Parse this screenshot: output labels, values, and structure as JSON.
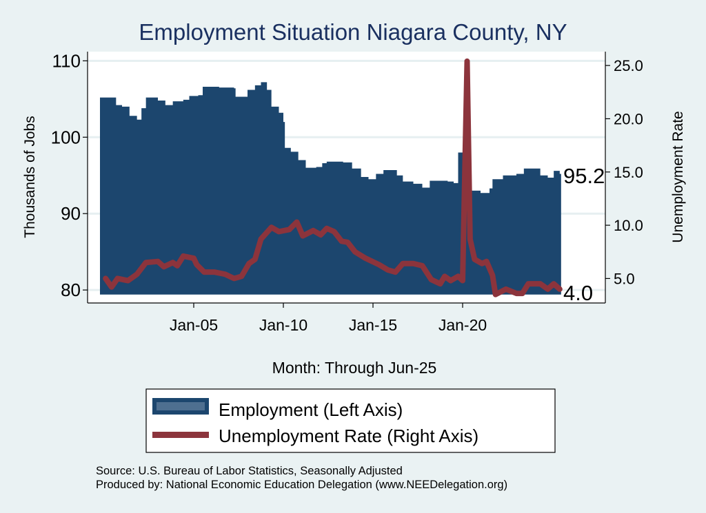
{
  "chart_data": {
    "type": "area+line",
    "title": "Employment Situation Niagara  County, NY",
    "xlabel": "Month: Through Jun-25",
    "ylabel_left": "Thousands of Jobs",
    "ylabel_right": "Unemployment Rate",
    "x_ticks": [
      {
        "date": "2005-01",
        "label": "Jan-05"
      },
      {
        "date": "2010-01",
        "label": "Jan-10"
      },
      {
        "date": "2015-01",
        "label": "Jan-15"
      },
      {
        "date": "2020-01",
        "label": "Jan-20"
      }
    ],
    "y_left_ticks": [
      80,
      90,
      100,
      110
    ],
    "y_right_ticks": [
      "5.0",
      "10.0",
      "15.0",
      "20.0",
      "25.0"
    ],
    "ylim_left": [
      78.3,
      111.2
    ],
    "ylim_right": [
      2.7,
      26.3
    ],
    "grid": true,
    "legend_placement": "bottom",
    "end_labels": {
      "employment": "95.2",
      "unemployment": "4.0"
    },
    "series": [
      {
        "name": "Employment (Left Axis)",
        "axis": "left",
        "style": "area",
        "color": "#1c466e",
        "points": [
          [
            "2000-01",
            105.2
          ],
          [
            "2000-09",
            104.2
          ],
          [
            "2001-01",
            104.0
          ],
          [
            "2001-06",
            102.8
          ],
          [
            "2001-11",
            102.3
          ],
          [
            "2002-02",
            103.8
          ],
          [
            "2002-05",
            105.2
          ],
          [
            "2003-01",
            104.8
          ],
          [
            "2003-06",
            104.2
          ],
          [
            "2003-11",
            104.7
          ],
          [
            "2004-06",
            104.9
          ],
          [
            "2004-10",
            105.4
          ],
          [
            "2005-04",
            105.5
          ],
          [
            "2005-07",
            106.6
          ],
          [
            "2006-06",
            106.5
          ],
          [
            "2007-04",
            106.4
          ],
          [
            "2007-05",
            105.3
          ],
          [
            "2008-01",
            106.2
          ],
          [
            "2008-06",
            106.8
          ],
          [
            "2008-10",
            107.2
          ],
          [
            "2009-02",
            106.2
          ],
          [
            "2009-05",
            104.0
          ],
          [
            "2009-10",
            103.2
          ],
          [
            "2010-01",
            102.0
          ],
          [
            "2010-02",
            98.6
          ],
          [
            "2010-06",
            98.1
          ],
          [
            "2010-11",
            97.0
          ],
          [
            "2011-04",
            96.0
          ],
          [
            "2011-11",
            96.1
          ],
          [
            "2012-03",
            96.6
          ],
          [
            "2012-06",
            96.8
          ],
          [
            "2013-05",
            96.7
          ],
          [
            "2013-11",
            95.9
          ],
          [
            "2014-05",
            94.8
          ],
          [
            "2014-10",
            94.5
          ],
          [
            "2015-03",
            95.2
          ],
          [
            "2015-08",
            95.7
          ],
          [
            "2016-05",
            95.0
          ],
          [
            "2016-09",
            94.2
          ],
          [
            "2017-04",
            93.9
          ],
          [
            "2017-10",
            93.4
          ],
          [
            "2018-03",
            94.3
          ],
          [
            "2019-03",
            94.2
          ],
          [
            "2019-07",
            94.0
          ],
          [
            "2019-10",
            98.0
          ],
          [
            "2020-03",
            98.0
          ],
          [
            "2020-04",
            93.0
          ],
          [
            "2021-01",
            92.7
          ],
          [
            "2021-07",
            93.3
          ],
          [
            "2021-09",
            94.5
          ],
          [
            "2022-04",
            95.0
          ],
          [
            "2023-01",
            95.2
          ],
          [
            "2023-06",
            95.9
          ],
          [
            "2024-01",
            95.9
          ],
          [
            "2024-05",
            95.0
          ],
          [
            "2024-10",
            94.7
          ],
          [
            "2025-02",
            95.6
          ],
          [
            "2025-06",
            95.2
          ]
        ]
      },
      {
        "name": "Unemployment Rate (Right Axis)",
        "axis": "right",
        "style": "line",
        "color": "#8c343c",
        "points": [
          [
            "2000-02",
            5.0
          ],
          [
            "2000-06",
            4.2
          ],
          [
            "2000-10",
            5.0
          ],
          [
            "2001-05",
            4.8
          ],
          [
            "2001-11",
            5.4
          ],
          [
            "2002-05",
            6.5
          ],
          [
            "2003-01",
            6.6
          ],
          [
            "2003-05",
            6.1
          ],
          [
            "2003-11",
            6.5
          ],
          [
            "2004-02",
            6.2
          ],
          [
            "2004-06",
            7.1
          ],
          [
            "2005-01",
            6.9
          ],
          [
            "2005-03",
            6.3
          ],
          [
            "2005-08",
            5.6
          ],
          [
            "2006-03",
            5.6
          ],
          [
            "2006-10",
            5.4
          ],
          [
            "2007-04",
            5.0
          ],
          [
            "2007-09",
            5.2
          ],
          [
            "2008-02",
            6.4
          ],
          [
            "2008-06",
            6.8
          ],
          [
            "2008-10",
            8.7
          ],
          [
            "2009-05",
            9.8
          ],
          [
            "2009-10",
            9.4
          ],
          [
            "2010-05",
            9.6
          ],
          [
            "2010-10",
            10.3
          ],
          [
            "2011-02",
            9.0
          ],
          [
            "2011-09",
            9.5
          ],
          [
            "2012-02",
            9.1
          ],
          [
            "2012-06",
            9.7
          ],
          [
            "2012-11",
            9.4
          ],
          [
            "2013-04",
            8.5
          ],
          [
            "2013-08",
            8.4
          ],
          [
            "2014-01",
            7.5
          ],
          [
            "2014-08",
            6.9
          ],
          [
            "2015-05",
            6.3
          ],
          [
            "2015-11",
            5.8
          ],
          [
            "2016-04",
            5.6
          ],
          [
            "2016-09",
            6.4
          ],
          [
            "2017-04",
            6.4
          ],
          [
            "2017-10",
            6.2
          ],
          [
            "2018-04",
            4.9
          ],
          [
            "2018-10",
            4.5
          ],
          [
            "2019-01",
            5.2
          ],
          [
            "2019-05",
            4.8
          ],
          [
            "2019-10",
            5.2
          ],
          [
            "2020-01",
            4.8
          ],
          [
            "2020-04",
            25.4
          ],
          [
            "2020-06",
            8.7
          ],
          [
            "2020-09",
            6.8
          ],
          [
            "2021-02",
            6.4
          ],
          [
            "2021-05",
            6.6
          ],
          [
            "2021-09",
            5.3
          ],
          [
            "2021-11",
            3.5
          ],
          [
            "2022-06",
            4.0
          ],
          [
            "2023-01",
            3.6
          ],
          [
            "2023-05",
            3.6
          ],
          [
            "2023-09",
            4.5
          ],
          [
            "2024-05",
            4.5
          ],
          [
            "2024-10",
            4.0
          ],
          [
            "2025-02",
            4.5
          ],
          [
            "2025-06",
            4.0
          ]
        ]
      }
    ],
    "source_note": "Source: U.S. Bureau of Labor Statistics, Seasonally Adjusted",
    "produced_note": "Produced by: National Economic Education Delegation (www.NEEDelegation.org)"
  }
}
